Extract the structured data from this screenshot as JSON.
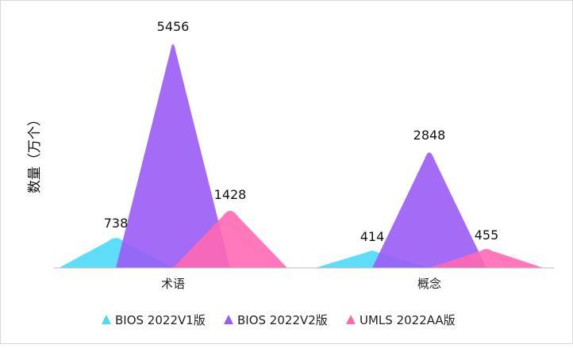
{
  "chart_data": {
    "type": "pictorial-bar",
    "ylabel": "数量（万个）",
    "categories": [
      "术语",
      "概念"
    ],
    "series": [
      {
        "name": "BIOS 2022V1版",
        "values": [
          738,
          414
        ],
        "color": "#4dd9f7"
      },
      {
        "name": "BIOS 2022V2版",
        "values": [
          5456,
          2848
        ],
        "color": "#9a5cf5"
      },
      {
        "name": "UMLS 2022AA版",
        "values": [
          1428,
          455
        ],
        "color": "#ff69b4"
      }
    ],
    "ylim": [
      0,
      5456
    ],
    "grid": false,
    "legend": "bottom"
  }
}
